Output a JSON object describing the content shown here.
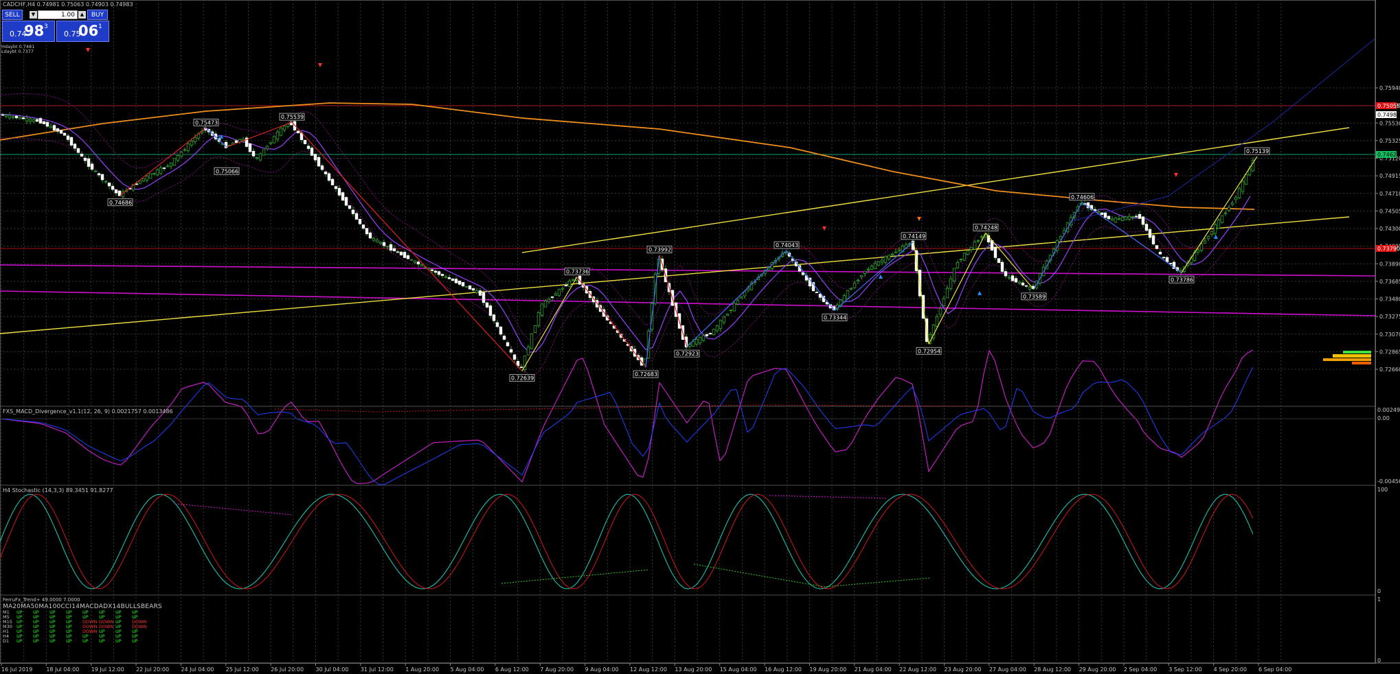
{
  "window": {
    "symbol_header": "CADCHF,H4  0.74981 0.75063 0.74903 0.74983",
    "top_info_1": "Hdaybt 0.7481",
    "top_info_2": "Ldaybt 0.7377"
  },
  "trade_panel": {
    "sell_label": "SELL",
    "buy_label": "BUY",
    "lot_value": "1.00",
    "lot_down_icon": "chevron-down-icon",
    "lot_up_icon": "chevron-up-icon",
    "sell_price_small": "0.74",
    "sell_price_big": "98",
    "sell_price_sup": "3",
    "buy_price_small": "0.75",
    "buy_price_big": "06",
    "buy_price_sup": "1"
  },
  "price_axis": {
    "ticks": [
      "0.75940",
      "0.75735",
      "0.75530",
      "0.75325",
      "0.75120",
      "0.74915",
      "0.74710",
      "0.74505",
      "0.74300",
      "0.74095",
      "0.73890",
      "0.73685",
      "0.73480",
      "0.73275",
      "0.73070",
      "0.72865",
      "0.72660"
    ],
    "current_price": "0.74983",
    "red_level_top": "0.75055",
    "green_level": "0.74625",
    "red_level_bottom": "0.73790",
    "colors": {
      "current": "#ffffff",
      "red": "#e01010",
      "green": "#10c060"
    }
  },
  "time_axis": {
    "labels": [
      "16 Jul 2019",
      "18 Jul 04:00",
      "19 Jul 12:00",
      "22 Jul 20:00",
      "24 Jul 04:00",
      "25 Jul 12:00",
      "26 Jul 20:00",
      "30 Jul 04:00",
      "31 Jul 12:00",
      "1 Aug 20:00",
      "5 Aug 04:00",
      "6 Aug 12:00",
      "7 Aug 20:00",
      "9 Aug 04:00",
      "12 Aug 12:00",
      "13 Aug 20:00",
      "15 Aug 04:00",
      "16 Aug 12:00",
      "19 Aug 20:00",
      "21 Aug 04:00",
      "22 Aug 12:00",
      "23 Aug 20:00",
      "27 Aug 04:00",
      "28 Aug 12:00",
      "29 Aug 20:00",
      "2 Sep 04:00",
      "3 Sep 12:00",
      "4 Sep 20:00",
      "6 Sep 04:00"
    ]
  },
  "zigzag_labels": [
    "0.74686",
    "0.75473",
    "0.75539",
    "0.75066",
    "0.72639",
    "0.73736",
    "0.73992",
    "0.72683",
    "0.72923",
    "0.74043",
    "0.73344",
    "0.74149",
    "0.72954",
    "0.74248",
    "0.73589",
    "0.74606",
    "0.73786",
    "0.75139"
  ],
  "macd_panel": {
    "header": "FXS_MACD_Divergence_v1.1(12, 26, 9) 0.0021757 0.0013486",
    "ticks": [
      "0.0024969",
      "0.00",
      "-0.004568"
    ]
  },
  "stoch_panel": {
    "header": "H4 Stochastic (14,3,3) 89.3451 91.8277",
    "ticks": [
      "100",
      "0"
    ]
  },
  "trend_panel": {
    "header_title": "FerruFx_Trend+ 49.0000 7.0000",
    "columns": [
      "MA20",
      "MA50",
      "MA100",
      "CCI14",
      "MACD",
      "ADX14",
      "BULLS",
      "BEARS"
    ],
    "columns_text": "MA20MA50MA100CCI14MACDADX14BULLSBEARS",
    "rows": [
      {
        "tf": "M1",
        "cells": [
          "UP",
          "UP",
          "UP",
          "UP",
          "UP",
          "UP",
          "UP",
          "UP"
        ]
      },
      {
        "tf": "M5",
        "cells": [
          "UP",
          "UP",
          "UP",
          "UP",
          "UP",
          "UP",
          "UP",
          "UP"
        ]
      },
      {
        "tf": "M15",
        "cells": [
          "UP",
          "UP",
          "UP",
          "UP",
          "DOWN",
          "DOWN",
          "UP",
          "DOWN"
        ]
      },
      {
        "tf": "M30",
        "cells": [
          "UP",
          "UP",
          "UP",
          "UP",
          "DOWN",
          "DOWN",
          "UP",
          "DOWN"
        ]
      },
      {
        "tf": "H1",
        "cells": [
          "UP",
          "UP",
          "UP",
          "UP",
          "DOWN",
          "UP",
          "UP",
          "UP"
        ]
      },
      {
        "tf": "H4",
        "cells": [
          "UP",
          "UP",
          "UP",
          "UP",
          "UP",
          "UP",
          "UP",
          "UP"
        ]
      },
      {
        "tf": "D1",
        "cells": [
          "UP",
          "UP",
          "UP",
          "UP",
          "UP",
          "UP",
          "UP",
          "UP"
        ]
      }
    ],
    "ticks": [
      "1",
      "0"
    ]
  }
}
